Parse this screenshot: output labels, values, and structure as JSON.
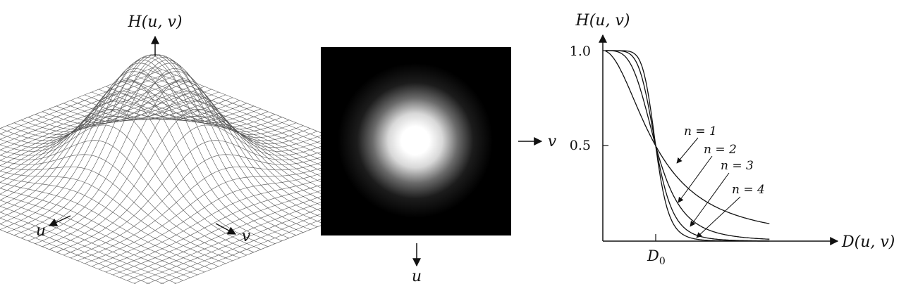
{
  "mesh_panel": {
    "title": "H(u, v)",
    "axis_u": "u",
    "axis_v": "v"
  },
  "image_panel": {
    "axis_v": "v",
    "axis_u": "u"
  },
  "chart_data": {
    "type": "line",
    "title": "",
    "ylabel": "H(u, v)",
    "xlabel": "D(u, v)",
    "x_tick": "D",
    "x_tick_sub": "0",
    "y_ticks": [
      "1.0",
      "0.5"
    ],
    "xlim": [
      0,
      3.2
    ],
    "ylim": [
      0,
      1.05
    ],
    "D0": 1,
    "series": [
      {
        "name": "n = 1",
        "order": 1
      },
      {
        "name": "n = 2",
        "order": 2
      },
      {
        "name": "n = 3",
        "order": 3
      },
      {
        "name": "n = 4",
        "order": 4
      }
    ]
  }
}
